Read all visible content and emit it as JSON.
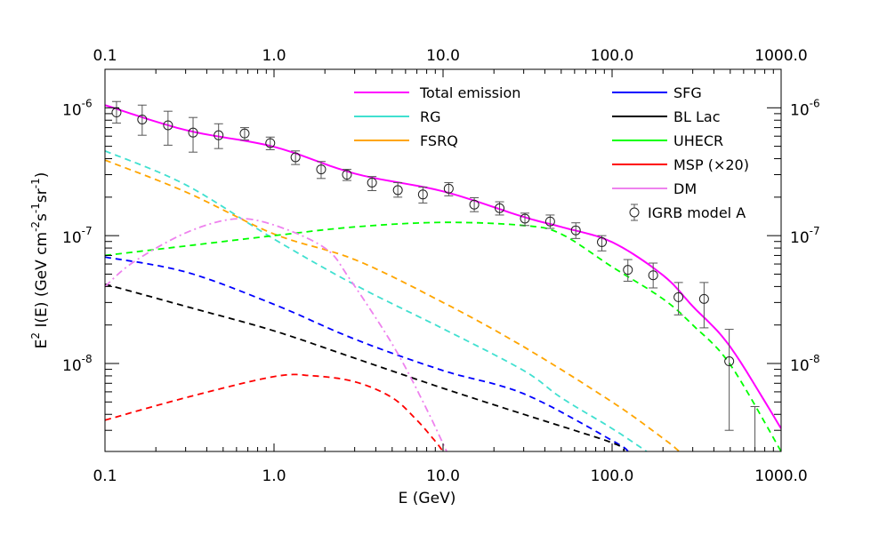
{
  "chart_data": {
    "type": "line",
    "xlabel": "E (GeV)",
    "ylabel_parts": [
      "E",
      "2",
      " I(E) (GeV cm",
      "-2",
      "s",
      "-1",
      "sr",
      "-1",
      ")"
    ],
    "x_scale": "log",
    "y_scale": "log",
    "xlim": [
      0.1,
      1000
    ],
    "ylim": [
      2.05e-09,
      2e-06
    ],
    "x_ticks": [
      0.1,
      1,
      10,
      100,
      1000
    ],
    "x_tick_labels": [
      "0.1",
      "1.0",
      "10.0",
      "100.0",
      "1000.0"
    ],
    "y_ticks": [
      1e-06,
      1e-07,
      1e-08
    ],
    "y_tick_labels": [
      {
        "base": "10",
        "exp": "-6"
      },
      {
        "base": "10",
        "exp": "-7"
      },
      {
        "base": "10",
        "exp": "-8"
      }
    ],
    "grid": false,
    "legend_placement": "top-right",
    "series": [
      {
        "name": "Total emission",
        "color": "#ff00ff",
        "style": "solid",
        "x": [
          0.1,
          0.3,
          1,
          3,
          10,
          30,
          50,
          100,
          200,
          300,
          500,
          1000
        ],
        "y": [
          1.05e-06,
          6.7e-07,
          4.95e-07,
          3.06e-07,
          2.22e-07,
          1.4e-07,
          1.17e-07,
          8.9e-08,
          4.9e-08,
          2.8e-08,
          1.35e-08,
          3.1e-09
        ]
      },
      {
        "name": "RG",
        "color": "#40e0d0",
        "style": "dashed",
        "x": [
          0.1,
          0.3,
          1,
          3,
          10,
          30,
          50,
          100,
          160
        ],
        "y": [
          4.6e-07,
          2.5e-07,
          9.4e-08,
          4.13e-08,
          1.87e-08,
          8.8e-09,
          5.4e-09,
          3.1e-09,
          2.05e-09
        ]
      },
      {
        "name": "FSRQ",
        "color": "#ffa500",
        "style": "dashed",
        "x": [
          0.1,
          0.3,
          1,
          3,
          10,
          30,
          100,
          200,
          250
        ],
        "y": [
          3.9e-07,
          2.2e-07,
          1.03e-07,
          6.5e-08,
          3e-08,
          1.35e-08,
          5e-09,
          2.6e-09,
          2.05e-09
        ]
      },
      {
        "name": "SFG",
        "color": "#0000ff",
        "style": "dashed",
        "x": [
          0.1,
          0.3,
          1,
          3,
          10,
          30,
          100,
          125
        ],
        "y": [
          6.8e-08,
          5.2e-08,
          2.9e-08,
          1.55e-08,
          8.8e-09,
          5.8e-09,
          2.5e-09,
          2.05e-09
        ]
      },
      {
        "name": "BL Lac",
        "color": "#000000",
        "style": "dashed",
        "x": [
          0.1,
          0.3,
          1,
          3,
          10,
          30,
          100,
          118
        ],
        "y": [
          4.17e-08,
          2.8e-08,
          1.8e-08,
          1.1e-08,
          6.4e-09,
          4e-09,
          2.4e-09,
          2.05e-09
        ]
      },
      {
        "name": "UHECR",
        "color": "#00ff00",
        "style": "dashed",
        "x": [
          0.1,
          0.3,
          1,
          3,
          10,
          30,
          50,
          100,
          200,
          300,
          500,
          1000
        ],
        "y": [
          7e-08,
          8.3e-08,
          1e-07,
          1.17e-07,
          1.27e-07,
          1.2e-07,
          1.03e-07,
          5.7e-08,
          3.2e-08,
          2e-08,
          9.8e-09,
          2.05e-09
        ]
      },
      {
        "name": "MSP (×20)",
        "color": "#ff0000",
        "style": "dashed",
        "x": [
          0.1,
          0.3,
          1,
          1.7,
          3,
          5,
          7,
          9,
          10
        ],
        "y": [
          3.6e-09,
          5.4e-09,
          7.9e-09,
          8e-09,
          7.2e-09,
          5.4e-09,
          3.6e-09,
          2.46e-09,
          2.05e-09
        ]
      },
      {
        "name": "DM",
        "color": "#ee82ee",
        "style": "dashdot",
        "x": [
          0.1,
          0.147,
          0.3,
          0.58,
          1,
          2,
          2.8,
          5.1,
          7.8,
          10.6
        ],
        "y": [
          4e-08,
          6.2e-08,
          1.05e-07,
          1.35e-07,
          1.21e-07,
          8e-08,
          4.6e-08,
          1.36e-08,
          4.7e-09,
          2e-09
        ]
      }
    ],
    "data_points": {
      "name": "IGRB model A",
      "color": "#000000",
      "x": [
        0.117,
        0.166,
        0.236,
        0.332,
        0.47,
        0.67,
        0.95,
        1.34,
        1.9,
        2.7,
        3.8,
        5.4,
        7.6,
        10.8,
        15.3,
        21.6,
        30.5,
        43,
        61,
        87,
        124,
        175,
        247,
        350,
        493,
        700
      ],
      "y": [
        9.2e-07,
        8.1e-07,
        7.3e-07,
        6.4e-07,
        6.1e-07,
        6.3e-07,
        5.3e-07,
        4.1e-07,
        3.3e-07,
        3e-07,
        2.6e-07,
        2.27e-07,
        2.1e-07,
        2.33e-07,
        1.75e-07,
        1.64e-07,
        1.36e-07,
        1.29e-07,
        1.1e-07,
        8.9e-08,
        5.4e-08,
        4.9e-08,
        3.3e-08,
        3.2e-08,
        1.04e-08,
        1e-09
      ],
      "y_upper": [
        1.12e-06,
        1.05e-06,
        9.4e-07,
        8.4e-07,
        7.5e-07,
        7e-07,
        5.9e-07,
        4.6e-07,
        3.8e-07,
        3.3e-07,
        2.9e-07,
        2.6e-07,
        2.4e-07,
        2.6e-07,
        1.98e-07,
        1.84e-07,
        1.5e-07,
        1.45e-07,
        1.26e-07,
        1e-07,
        6.5e-08,
        6.1e-08,
        4.3e-08,
        4.3e-08,
        1.85e-08,
        4.6e-09
      ],
      "y_lower": [
        7.6e-07,
        6.1e-07,
        5.1e-07,
        4.5e-07,
        4.8e-07,
        5.6e-07,
        4.7e-07,
        3.6e-07,
        2.8e-07,
        2.7e-07,
        2.25e-07,
        2e-07,
        1.8e-07,
        2.05e-07,
        1.54e-07,
        1.45e-07,
        1.2e-07,
        1.14e-07,
        9.5e-08,
        7.6e-08,
        4.4e-08,
        3.9e-08,
        2.4e-08,
        1.9e-08,
        3e-09,
        1e-09
      ]
    }
  }
}
